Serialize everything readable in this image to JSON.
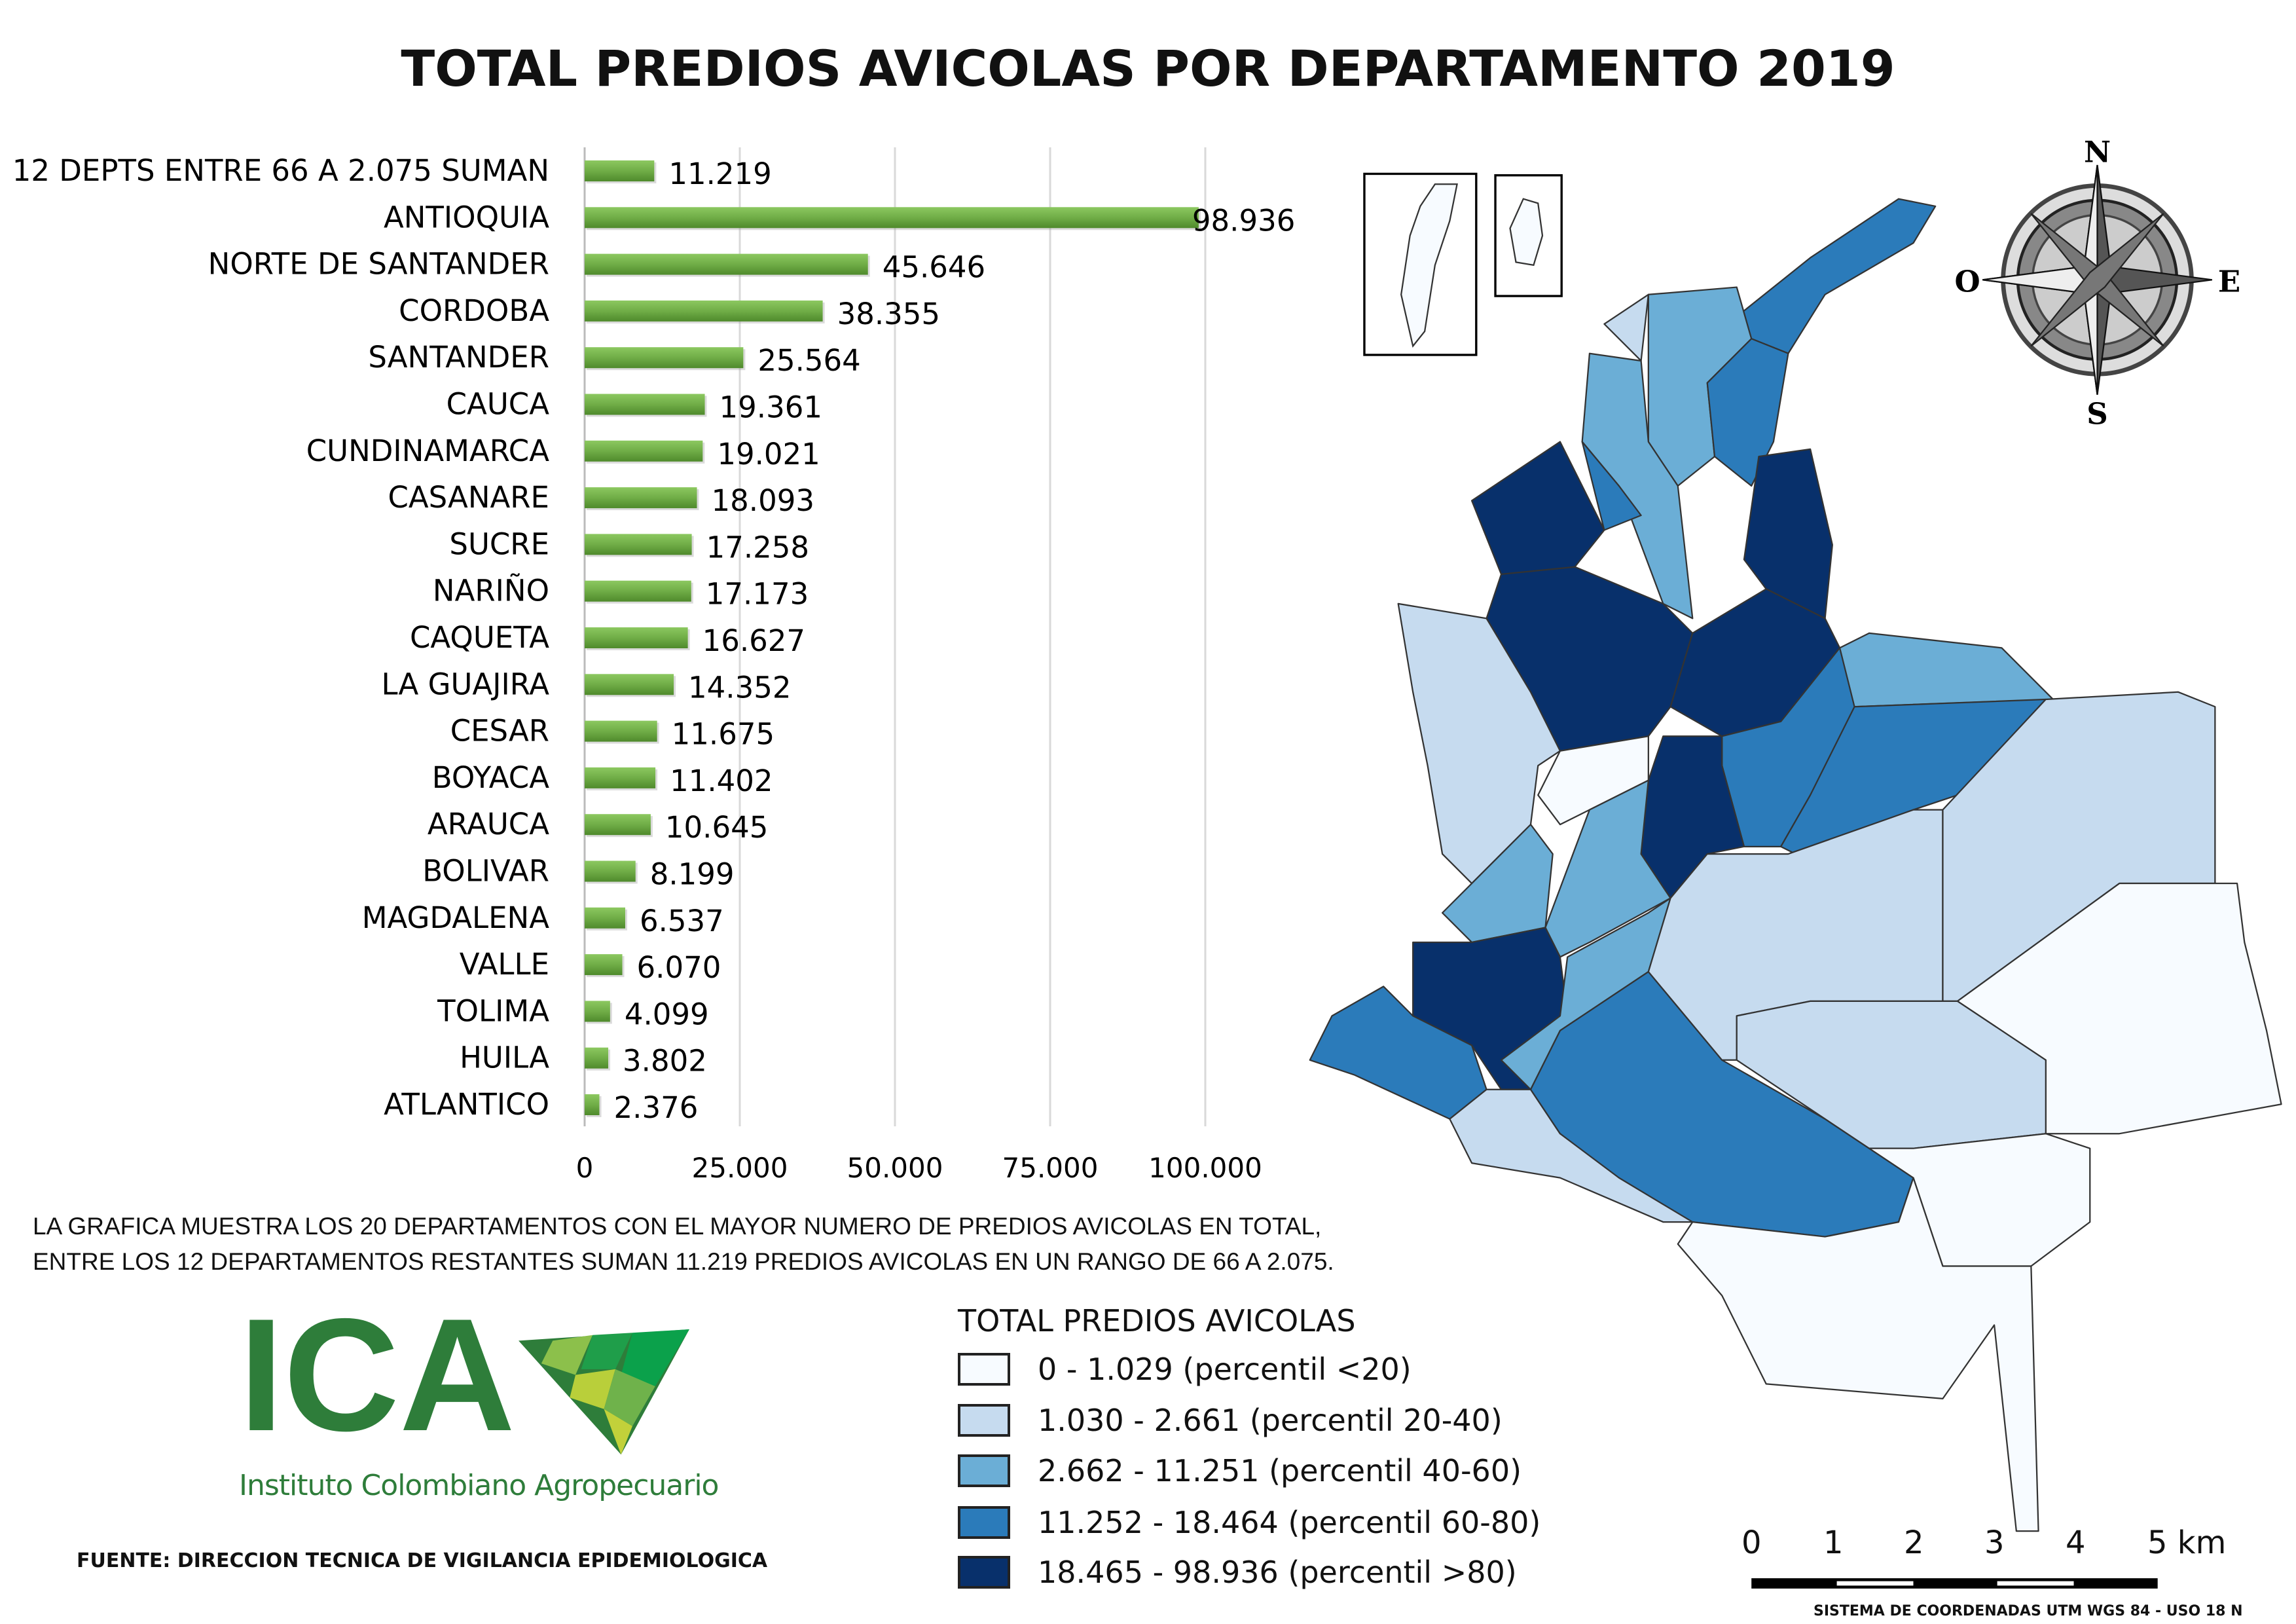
{
  "title": "TOTAL PREDIOS AVICOLAS POR DEPARTAMENTO 2019",
  "chart_data": {
    "type": "bar",
    "orientation": "horizontal",
    "title": "TOTAL PREDIOS AVICOLAS POR DEPARTAMENTO 2019",
    "categories": [
      "12 DEPTS ENTRE 66 A 2.075 SUMAN",
      "ANTIOQUIA",
      "NORTE DE SANTANDER",
      "CORDOBA",
      "SANTANDER",
      "CAUCA",
      "CUNDINAMARCA",
      "CASANARE",
      "SUCRE",
      "NARIÑO",
      "CAQUETA",
      "LA GUAJIRA",
      "CESAR",
      "BOYACA",
      "ARAUCA",
      "BOLIVAR",
      "MAGDALENA",
      "VALLE",
      "TOLIMA",
      "HUILA",
      "ATLANTICO"
    ],
    "values": [
      11219,
      98936,
      45646,
      38355,
      25564,
      19361,
      19021,
      18093,
      17258,
      17173,
      16627,
      14352,
      11675,
      11402,
      10645,
      8199,
      6537,
      6070,
      4099,
      3802,
      2376
    ],
    "data_labels": [
      "11.219",
      "98.936",
      "45.646",
      "38.355",
      "25.564",
      "19.361",
      "19.021",
      "18.093",
      "17.258",
      "17.173",
      "16.627",
      "14.352",
      "11.675",
      "11.402",
      "10.645",
      "8.199",
      "6.537",
      "6.070",
      "4.099",
      "3.802",
      "2.376"
    ],
    "x_ticks": [
      0,
      25000,
      50000,
      75000,
      100000
    ],
    "x_tick_labels": [
      "0",
      "25.000",
      "50.000",
      "75.000",
      "100.000"
    ],
    "xlim": [
      0,
      100000
    ],
    "grid": true,
    "bar_color": "#70ad47"
  },
  "note": {
    "line1": "LA GRAFICA MUESTRA LOS 20 DEPARTAMENTOS CON EL MAYOR NUMERO DE PREDIOS AVICOLAS EN TOTAL,",
    "line2": "ENTRE LOS 12 DEPARTAMENTOS RESTANTES SUMAN 11.219 PREDIOS AVICOLAS EN UN RANGO DE 66 A 2.075."
  },
  "legend": {
    "title": "TOTAL PREDIOS AVICOLAS",
    "items": [
      {
        "label": "0 - 1.029 (percentil <20)",
        "color": "#f7fbff"
      },
      {
        "label": "1.030 - 2.661 (percentil 20-40)",
        "color": "#c6dbef"
      },
      {
        "label": "2.662 - 11.251 (percentil 40-60)",
        "color": "#6baed6"
      },
      {
        "label": "11.252 - 18.464 (percentil 60-80)",
        "color": "#2b7bba"
      },
      {
        "label": "18.465 - 98.936 (percentil >80)",
        "color": "#08306b"
      }
    ]
  },
  "logo": {
    "letters": "ICA",
    "name": "Instituto Colombiano Agropecuario"
  },
  "source": "FUENTE: DIRECCION TECNICA DE VIGILANCIA EPIDEMIOLOGICA",
  "compass": {
    "n": "N",
    "s": "S",
    "e": "E",
    "w": "O"
  },
  "scale_bar": {
    "labels": [
      "0",
      "1",
      "2",
      "3",
      "4",
      "5 km"
    ]
  },
  "crs": "SISTEMA DE COORDENADAS UTM WGS 84 - USO 18 N"
}
